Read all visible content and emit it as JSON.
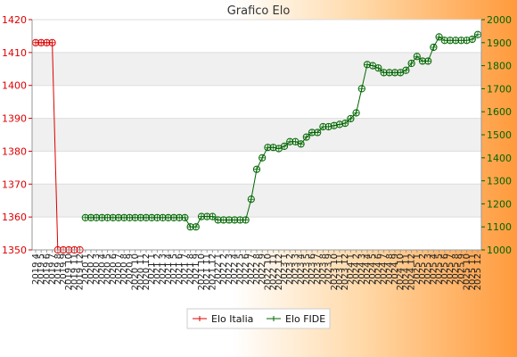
{
  "chart_data": {
    "type": "line",
    "title": "Grafico Elo",
    "x": [
      "2019 4",
      "2019 5",
      "2019 6",
      "2019 7",
      "2019 8",
      "2019 9",
      "2019 10",
      "2019 11",
      "2019 12",
      "2020 1",
      "2020 2",
      "2020 3",
      "2020 4",
      "2020 5",
      "2020 6",
      "2020 7",
      "2020 8",
      "2020 9",
      "2020 10",
      "2020 11",
      "2020 12",
      "2021 1",
      "2021 2",
      "2021 3",
      "2021 4",
      "2021 5",
      "2021 6",
      "2021 7",
      "2021 8",
      "2021 9",
      "2021 10",
      "2021 11",
      "2021 12",
      "2022 1",
      "2022 2",
      "2022 3",
      "2022 4",
      "2022 5",
      "2022 6",
      "2022 7",
      "2022 8",
      "2022 9",
      "2022 10",
      "2022 11",
      "2022 12",
      "2023 1",
      "2023 2",
      "2023 3",
      "2023 4",
      "2023 5",
      "2023 6",
      "2023 7",
      "2023 8",
      "2023 9",
      "2023 10",
      "2023 11",
      "2023 12",
      "2024 1",
      "2024 2",
      "2024 3",
      "2024 4",
      "2024 5",
      "2024 6",
      "2024 7",
      "2024 8",
      "2024 9",
      "2024 10",
      "2024 11",
      "2024 12",
      "2025 1",
      "2025 2",
      "2025 3",
      "2025 4",
      "2025 5",
      "2025 6",
      "2025 7",
      "2025 8",
      "2025 9",
      "2025 10",
      "2025 11",
      "2025 12"
    ],
    "x_tick_labels": [
      "2019 4",
      "2019 5",
      "2019 6",
      "2019 7",
      "2019 8",
      "2019 9",
      "2019 10",
      "2019 11",
      "2019 12",
      "2020 1",
      "2020 2",
      "2020 3",
      "2020 4",
      "2020 5",
      "2020 6",
      "2020 7",
      "2020 8",
      "2020 9",
      "2020 10",
      "2020 11",
      "2020 12",
      "2021 1",
      "2021 2",
      "2021 3",
      "2021 4",
      "2021 5",
      "2021 6",
      "2021 7",
      "2021 8",
      "2021 9",
      "2021 10",
      "2021 11",
      "2021 12",
      "2022 1",
      "2022 2",
      "2022 3",
      "2022 4",
      "2022 5",
      "2022 6",
      "2022 7",
      "2022 8",
      "2022 9",
      "2022 10",
      "2022 11",
      "2022 12",
      "2023 1",
      "2023 2",
      "2023 3",
      "2023 4",
      "2023 5",
      "2023 6",
      "2023 7",
      "2023 8",
      "2023 9",
      "2023 10",
      "2023 11",
      "2023 12",
      "2024 1",
      "2024 2",
      "2024 3",
      "2024 4",
      "2024 5",
      "2024 6",
      "2024 7",
      "2024 8",
      "2024 9",
      "2024 10",
      "2024 11",
      "2024 12",
      "2025 1",
      "2025 2",
      "2025 3",
      "2025 4",
      "2025 5",
      "2025 6",
      "2025 7",
      "2025 8",
      "2025 9",
      "2025 10",
      "2025 11",
      "2025 12"
    ],
    "y_left": {
      "ticks": [
        1350,
        1360,
        1370,
        1380,
        1390,
        1400,
        1410,
        1420
      ],
      "ylim": [
        1350,
        1420
      ],
      "color": "#dd0000"
    },
    "y_right": {
      "ticks": [
        1000,
        1100,
        1200,
        1300,
        1400,
        1500,
        1600,
        1700,
        1800,
        1900,
        2000
      ],
      "ylim": [
        1000,
        2000
      ],
      "color": "#006600"
    },
    "grid": true,
    "legend_position": "bottom",
    "series": [
      {
        "name": "Elo Italia",
        "axis": "left",
        "color": "#dd0000",
        "values": [
          1413,
          1413,
          1413,
          1413,
          1350,
          1350,
          1350,
          1350,
          1350,
          null,
          null,
          null,
          null,
          null,
          null,
          null,
          null,
          null,
          null,
          null,
          null,
          null,
          null,
          null,
          null,
          null,
          null,
          null,
          null,
          null,
          null,
          null,
          null,
          null,
          null,
          null,
          null,
          null,
          null,
          null,
          null,
          null,
          null,
          null,
          null,
          null,
          null,
          null,
          null,
          null,
          null,
          null,
          null,
          null,
          null,
          null,
          null,
          null,
          null,
          null,
          null,
          null,
          null,
          null,
          null,
          null,
          null,
          null,
          null,
          null,
          null,
          null,
          null,
          null,
          null,
          null,
          null,
          null,
          null,
          null,
          null
        ]
      },
      {
        "name": "Elo FIDE",
        "axis": "right",
        "color": "#006600",
        "values": [
          null,
          null,
          null,
          null,
          null,
          null,
          null,
          null,
          null,
          1140,
          1140,
          1140,
          1140,
          1140,
          1140,
          1140,
          1140,
          1140,
          1140,
          1140,
          1140,
          1140,
          1140,
          1140,
          1140,
          1140,
          1140,
          1140,
          1100,
          1100,
          1145,
          1145,
          1145,
          1130,
          1130,
          1130,
          1130,
          1130,
          1130,
          1220,
          1350,
          1400,
          1445,
          1445,
          1440,
          1450,
          1470,
          1470,
          1460,
          1490,
          1510,
          1510,
          1535,
          1535,
          1540,
          1545,
          1550,
          1570,
          1595,
          1700,
          1805,
          1800,
          1790,
          1770,
          1770,
          1770,
          1770,
          1780,
          1810,
          1840,
          1820,
          1820,
          1880,
          1925,
          1910,
          1910,
          1910,
          1910,
          1910,
          1915,
          1935
        ]
      }
    ]
  }
}
